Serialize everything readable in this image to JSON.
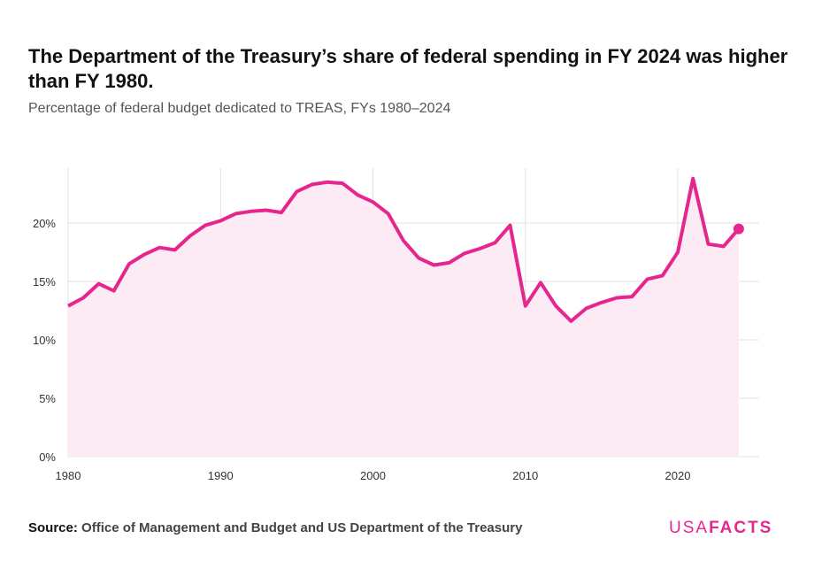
{
  "title": "The Department of the Treasury’s share of federal spending in FY 2024 was higher than FY 1980.",
  "subtitle": "Percentage of federal budget dedicated to TREAS, FYs 1980–2024",
  "source_label": "Source:",
  "source_text": "Office of Management and Budget and US Department of the Treasury",
  "logo": {
    "part1": "USA",
    "part2": "FACTS"
  },
  "colors": {
    "line": "#e6268f",
    "fill": "#fcebf4",
    "grid": "#e8e0e4"
  },
  "chart_data": {
    "type": "area",
    "title": "The Department of the Treasury’s share of federal spending in FY 2024 was higher than FY 1980.",
    "xlabel": "",
    "ylabel": "",
    "xlim": [
      1980,
      2025
    ],
    "ylim": [
      0,
      24
    ],
    "grid": true,
    "x_ticks": [
      1980,
      1990,
      2000,
      2010,
      2020
    ],
    "y_ticks": [
      0,
      5,
      10,
      15,
      20
    ],
    "y_tick_labels": [
      "0%",
      "5%",
      "10%",
      "15%",
      "20%"
    ],
    "x": [
      1980,
      1981,
      1982,
      1983,
      1984,
      1985,
      1986,
      1987,
      1988,
      1989,
      1990,
      1991,
      1992,
      1993,
      1994,
      1995,
      1996,
      1997,
      1998,
      1999,
      2000,
      2001,
      2002,
      2003,
      2004,
      2005,
      2006,
      2007,
      2008,
      2009,
      2010,
      2011,
      2012,
      2013,
      2014,
      2015,
      2016,
      2017,
      2018,
      2019,
      2020,
      2021,
      2022,
      2023,
      2024
    ],
    "values": [
      12.9,
      13.6,
      14.8,
      14.2,
      16.5,
      17.3,
      17.9,
      17.7,
      18.9,
      19.8,
      20.2,
      20.8,
      21.0,
      21.1,
      20.9,
      22.7,
      23.3,
      23.5,
      23.4,
      22.4,
      21.8,
      20.8,
      18.5,
      17.0,
      16.4,
      16.6,
      17.4,
      17.8,
      18.3,
      19.8,
      12.9,
      14.9,
      12.9,
      11.6,
      12.7,
      13.2,
      13.6,
      13.7,
      15.2,
      15.5,
      17.5,
      23.8,
      18.2,
      18.0,
      19.5
    ]
  }
}
